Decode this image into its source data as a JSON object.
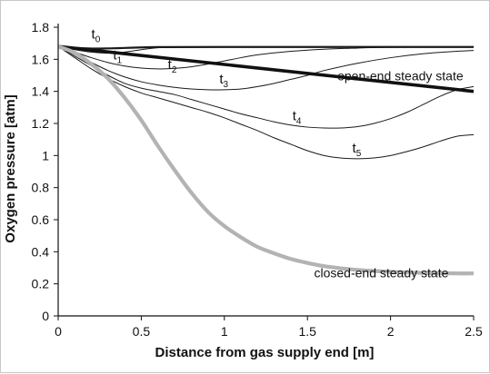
{
  "chart_data": {
    "type": "line",
    "xlabel": "Distance from gas supply end [m]",
    "ylabel": "Oxygen pressure [atm]",
    "xlim": [
      0,
      2.5
    ],
    "ylim": [
      0,
      1.8
    ],
    "xticks": [
      "0",
      "0.5",
      "1",
      "1.5",
      "2",
      "2.5"
    ],
    "yticks": [
      "0",
      "0.2",
      "0.4",
      "0.6",
      "0.8",
      "1",
      "1.2",
      "1.4",
      "1.6",
      "1.8"
    ],
    "grid": false,
    "legend": "none",
    "series": [
      {
        "name": "t0",
        "label_main": "t",
        "label_sub": "0",
        "color": "#1a1a1a",
        "width": 2.2,
        "label_at": [
          0.2,
          1.73
        ],
        "points": [
          [
            0,
            1.68
          ],
          [
            0.1,
            1.672
          ],
          [
            0.2,
            1.667
          ],
          [
            0.3,
            1.668
          ],
          [
            0.4,
            1.671
          ],
          [
            0.5,
            1.674
          ],
          [
            0.6,
            1.676
          ],
          [
            1.0,
            1.677
          ],
          [
            2.5,
            1.677
          ]
        ]
      },
      {
        "name": "t1",
        "label_main": "t",
        "label_sub": "1",
        "color": "#1a1a1a",
        "width": 1,
        "label_at": [
          0.33,
          1.6
        ],
        "points": [
          [
            0,
            1.68
          ],
          [
            0.1,
            1.66
          ],
          [
            0.2,
            1.645
          ],
          [
            0.3,
            1.638
          ],
          [
            0.4,
            1.645
          ],
          [
            0.5,
            1.66
          ],
          [
            0.6,
            1.672
          ],
          [
            0.7,
            1.676
          ],
          [
            1.0,
            1.677
          ],
          [
            2.5,
            1.677
          ]
        ]
      },
      {
        "name": "t2",
        "label_main": "t",
        "label_sub": "2",
        "color": "#1a1a1a",
        "width": 1,
        "label_at": [
          0.66,
          1.54
        ],
        "points": [
          [
            0,
            1.68
          ],
          [
            0.1,
            1.645
          ],
          [
            0.2,
            1.61
          ],
          [
            0.3,
            1.58
          ],
          [
            0.4,
            1.558
          ],
          [
            0.5,
            1.545
          ],
          [
            0.6,
            1.54
          ],
          [
            0.7,
            1.543
          ],
          [
            0.8,
            1.553
          ],
          [
            0.9,
            1.57
          ],
          [
            1.0,
            1.59
          ],
          [
            1.1,
            1.61
          ],
          [
            1.2,
            1.628
          ],
          [
            1.4,
            1.65
          ],
          [
            1.6,
            1.663
          ],
          [
            1.8,
            1.67
          ],
          [
            2.0,
            1.675
          ],
          [
            2.5,
            1.677
          ]
        ]
      },
      {
        "name": "t3",
        "label_main": "t",
        "label_sub": "3",
        "color": "#1a1a1a",
        "width": 1,
        "label_at": [
          0.97,
          1.45
        ],
        "points": [
          [
            0,
            1.68
          ],
          [
            0.1,
            1.63
          ],
          [
            0.2,
            1.58
          ],
          [
            0.3,
            1.53
          ],
          [
            0.4,
            1.49
          ],
          [
            0.5,
            1.46
          ],
          [
            0.6,
            1.44
          ],
          [
            0.7,
            1.425
          ],
          [
            0.8,
            1.415
          ],
          [
            0.9,
            1.41
          ],
          [
            1.0,
            1.41
          ],
          [
            1.1,
            1.415
          ],
          [
            1.2,
            1.43
          ],
          [
            1.3,
            1.45
          ],
          [
            1.4,
            1.475
          ],
          [
            1.5,
            1.5
          ],
          [
            1.6,
            1.53
          ],
          [
            1.8,
            1.575
          ],
          [
            2.0,
            1.61
          ],
          [
            2.2,
            1.635
          ],
          [
            2.4,
            1.65
          ],
          [
            2.5,
            1.655
          ]
        ]
      },
      {
        "name": "t4",
        "label_main": "t",
        "label_sub": "4",
        "color": "#1a1a1a",
        "width": 1,
        "label_at": [
          1.41,
          1.22
        ],
        "points": [
          [
            0,
            1.68
          ],
          [
            0.1,
            1.62
          ],
          [
            0.2,
            1.56
          ],
          [
            0.3,
            1.5
          ],
          [
            0.4,
            1.45
          ],
          [
            0.5,
            1.42
          ],
          [
            0.6,
            1.4
          ],
          [
            0.7,
            1.38
          ],
          [
            0.8,
            1.35
          ],
          [
            0.9,
            1.32
          ],
          [
            1.0,
            1.29
          ],
          [
            1.1,
            1.26
          ],
          [
            1.2,
            1.235
          ],
          [
            1.3,
            1.21
          ],
          [
            1.4,
            1.19
          ],
          [
            1.5,
            1.177
          ],
          [
            1.6,
            1.172
          ],
          [
            1.7,
            1.172
          ],
          [
            1.8,
            1.18
          ],
          [
            1.9,
            1.2
          ],
          [
            2.0,
            1.23
          ],
          [
            2.1,
            1.27
          ],
          [
            2.2,
            1.32
          ],
          [
            2.3,
            1.37
          ],
          [
            2.4,
            1.41
          ],
          [
            2.5,
            1.43
          ]
        ]
      },
      {
        "name": "t5",
        "label_main": "t",
        "label_sub": "5",
        "color": "#1a1a1a",
        "width": 1,
        "label_at": [
          1.77,
          1.02
        ],
        "points": [
          [
            0,
            1.68
          ],
          [
            0.1,
            1.61
          ],
          [
            0.2,
            1.54
          ],
          [
            0.3,
            1.48
          ],
          [
            0.4,
            1.43
          ],
          [
            0.5,
            1.39
          ],
          [
            0.6,
            1.36
          ],
          [
            0.7,
            1.33
          ],
          [
            0.8,
            1.3
          ],
          [
            0.9,
            1.27
          ],
          [
            1.0,
            1.235
          ],
          [
            1.1,
            1.195
          ],
          [
            1.2,
            1.155
          ],
          [
            1.3,
            1.11
          ],
          [
            1.4,
            1.07
          ],
          [
            1.5,
            1.03
          ],
          [
            1.6,
            1.0
          ],
          [
            1.7,
            0.985
          ],
          [
            1.8,
            0.98
          ],
          [
            1.9,
            0.985
          ],
          [
            2.0,
            1.0
          ],
          [
            2.1,
            1.025
          ],
          [
            2.2,
            1.055
          ],
          [
            2.3,
            1.09
          ],
          [
            2.4,
            1.12
          ],
          [
            2.5,
            1.13
          ]
        ]
      },
      {
        "name": "open-end steady state",
        "color": "#111111",
        "width": 3.6,
        "label_at": [
          1.68,
          1.47
        ],
        "points": [
          [
            0,
            1.68
          ],
          [
            2.5,
            1.4
          ]
        ]
      },
      {
        "name": "closed-end steady state",
        "color": "#b3b3b3",
        "width": 4.2,
        "label_at": [
          1.54,
          0.24
        ],
        "points": [
          [
            0,
            1.68
          ],
          [
            0.1,
            1.64
          ],
          [
            0.2,
            1.57
          ],
          [
            0.3,
            1.48
          ],
          [
            0.4,
            1.36
          ],
          [
            0.5,
            1.22
          ],
          [
            0.6,
            1.06
          ],
          [
            0.7,
            0.91
          ],
          [
            0.8,
            0.77
          ],
          [
            0.9,
            0.65
          ],
          [
            1.0,
            0.56
          ],
          [
            1.1,
            0.49
          ],
          [
            1.2,
            0.43
          ],
          [
            1.3,
            0.39
          ],
          [
            1.4,
            0.355
          ],
          [
            1.5,
            0.33
          ],
          [
            1.6,
            0.31
          ],
          [
            1.7,
            0.297
          ],
          [
            1.8,
            0.287
          ],
          [
            1.9,
            0.28
          ],
          [
            2.0,
            0.275
          ],
          [
            2.2,
            0.268
          ],
          [
            2.4,
            0.265
          ],
          [
            2.5,
            0.265
          ]
        ]
      }
    ]
  }
}
